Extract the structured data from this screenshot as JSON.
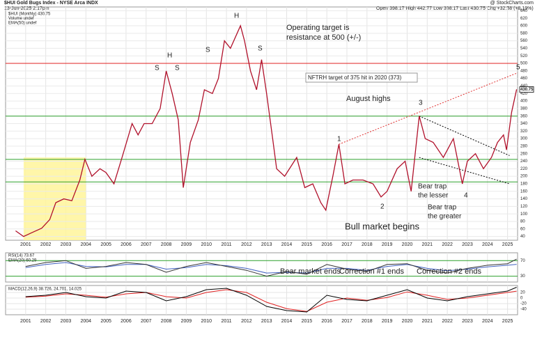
{
  "chart_data": {
    "type": "line",
    "title": "$HUI Gold Bugs Index - NYSE Arca INDX",
    "subtitle": "13-Jun-2025 2:17pm",
    "quote": "Open 398.17  High 442.77  Low 398.17  Last 430.75  Chg +32.58 (+8.19%)",
    "credit": "@ StockCharts.com",
    "legend": [
      "$HUI (Monthly) 430.75",
      "Volume undef",
      "EMA(50) undef"
    ],
    "last_price": 430.75,
    "color": "#b0102a",
    "grid": true,
    "xlim": [
      2000,
      2025.5
    ],
    "xticks": [
      2001,
      2002,
      2003,
      2004,
      2005,
      2006,
      2007,
      2008,
      2009,
      2010,
      2011,
      2012,
      2013,
      2014,
      2015,
      2016,
      2017,
      2018,
      2019,
      2020,
      2021,
      2022,
      2023,
      2024,
      2025
    ],
    "ylim": [
      30,
      650
    ],
    "yticks": [
      40,
      60,
      80,
      100,
      120,
      140,
      160,
      180,
      200,
      220,
      240,
      260,
      280,
      300,
      320,
      340,
      360,
      380,
      400,
      420,
      440,
      460,
      480,
      500,
      520,
      540,
      560,
      580,
      600,
      620,
      640
    ],
    "x": [
      2000.5,
      2000.9,
      2001.3,
      2001.8,
      2002.2,
      2002.5,
      2002.9,
      2003.3,
      2003.7,
      2003.95,
      2004.3,
      2004.7,
      2005.0,
      2005.4,
      2005.8,
      2006.3,
      2006.6,
      2006.9,
      2007.3,
      2007.7,
      2008.0,
      2008.3,
      2008.6,
      2008.85,
      2009.2,
      2009.6,
      2009.9,
      2010.3,
      2010.6,
      2010.9,
      2011.2,
      2011.7,
      2011.9,
      2012.2,
      2012.5,
      2012.75,
      2013.0,
      2013.3,
      2013.5,
      2013.9,
      2014.5,
      2014.9,
      2015.3,
      2015.7,
      2015.95,
      2016.3,
      2016.6,
      2016.9,
      2017.3,
      2017.8,
      2018.3,
      2018.7,
      2019.0,
      2019.5,
      2019.9,
      2020.2,
      2020.6,
      2020.9,
      2021.3,
      2021.8,
      2022.3,
      2022.75,
      2023.0,
      2023.4,
      2023.8,
      2024.2,
      2024.5,
      2024.8,
      2024.95,
      2025.2,
      2025.45
    ],
    "values": [
      55,
      40,
      50,
      62,
      85,
      130,
      140,
      135,
      190,
      245,
      200,
      220,
      210,
      180,
      250,
      340,
      310,
      340,
      340,
      380,
      480,
      420,
      350,
      170,
      290,
      350,
      430,
      420,
      460,
      560,
      540,
      600,
      560,
      480,
      430,
      510,
      420,
      300,
      220,
      200,
      250,
      170,
      180,
      130,
      110,
      200,
      285,
      180,
      190,
      190,
      180,
      145,
      160,
      220,
      240,
      160,
      360,
      300,
      290,
      250,
      300,
      180,
      240,
      260,
      220,
      250,
      290,
      310,
      270,
      370,
      431
    ],
    "levels": [
      {
        "value": 500,
        "color": "#e02020"
      },
      {
        "value": 360,
        "color": "#2ca02c"
      },
      {
        "value": 245,
        "color": "#2ca02c"
      },
      {
        "value": 185,
        "color": "#2ca02c"
      }
    ],
    "shaded_region": {
      "x": [
        2000.9,
        2004.0
      ],
      "y": [
        30,
        250
      ],
      "color": "#fff59a"
    },
    "trendlines": [
      {
        "x": [
          2016.6,
          2025.5
        ],
        "y": [
          285,
          475
        ],
        "color": "#e03030"
      },
      {
        "x": [
          2020.6,
          2025.1
        ],
        "y": [
          360,
          255
        ],
        "color": "#000000"
      },
      {
        "x": [
          2020.6,
          2025.1
        ],
        "y": [
          250,
          180
        ],
        "color": "#000000"
      }
    ],
    "annotations": [
      {
        "lines": [
          "Operating target is",
          "resistance at 500 (+/-)"
        ],
        "color": "#000000"
      },
      {
        "lines": [
          "NFTRH target of 375 hit in 2020 (373)"
        ],
        "color": "#333333"
      },
      {
        "lines": [
          "August highs"
        ],
        "color": "#e02020"
      },
      {
        "lines": [
          "Bear trap",
          "the lesser"
        ],
        "color": "#e02020"
      },
      {
        "lines": [
          "Bear trap",
          "the greater"
        ],
        "color": "#e02020"
      },
      {
        "lines": [
          "Bull market begins"
        ],
        "color": "#000000"
      },
      {
        "lines": [
          "H"
        ],
        "color": "#000000"
      },
      {
        "lines": [
          "H"
        ],
        "color": "#000000"
      },
      {
        "lines": [
          "S"
        ],
        "color": "#000000"
      },
      {
        "lines": [
          "S"
        ],
        "color": "#000000"
      },
      {
        "lines": [
          "S"
        ],
        "color": "#000000"
      },
      {
        "lines": [
          "S"
        ],
        "color": "#000000"
      },
      {
        "lines": [
          "1"
        ],
        "color": "#000000"
      },
      {
        "lines": [
          "2"
        ],
        "color": "#000000"
      },
      {
        "lines": [
          "3"
        ],
        "color": "#000000"
      },
      {
        "lines": [
          "4"
        ],
        "color": "#000000"
      },
      {
        "lines": [
          "5"
        ],
        "color": "#2020c0"
      }
    ],
    "rsi": {
      "label": "RSI(14) 73.67",
      "ema_label": "EMA(20) 60.29",
      "ylim": [
        15,
        90
      ],
      "yticks": [
        30,
        70
      ],
      "x": [
        2001,
        2002,
        2003,
        2004,
        2005,
        2006,
        2007,
        2008,
        2009,
        2010,
        2011,
        2012,
        2013,
        2014,
        2015,
        2016,
        2017,
        2018,
        2019,
        2020,
        2021,
        2022,
        2023,
        2024,
        2025,
        2025.45
      ],
      "values": [
        55,
        65,
        70,
        50,
        55,
        65,
        60,
        40,
        55,
        65,
        55,
        45,
        30,
        42,
        35,
        60,
        48,
        42,
        60,
        62,
        45,
        38,
        50,
        58,
        62,
        73.67
      ],
      "ema": [
        52,
        60,
        65,
        55,
        54,
        60,
        60,
        48,
        52,
        60,
        57,
        50,
        38,
        40,
        38,
        50,
        50,
        45,
        55,
        60,
        50,
        44,
        48,
        54,
        58,
        60.29
      ],
      "color": "#333333",
      "ema_color": "#4060c0",
      "annotations": [
        "Bear market ends",
        "Correction #1 ends",
        "Correction #2 ends"
      ]
    },
    "macd": {
      "label": "MACD(12,26,9) 38.726, 24.701, 14.025",
      "ylim": [
        -60,
        45
      ],
      "yticks": [
        -40,
        -20,
        0,
        20
      ],
      "x": [
        2001,
        2002,
        2003,
        2004,
        2005,
        2006,
        2007,
        2008,
        2009,
        2010,
        2011,
        2012,
        2013,
        2014,
        2015,
        2016,
        2017,
        2018,
        2019,
        2020,
        2021,
        2022,
        2023,
        2024,
        2025,
        2025.45
      ],
      "values": [
        5,
        10,
        20,
        5,
        0,
        25,
        20,
        -10,
        5,
        30,
        35,
        10,
        -30,
        -45,
        -50,
        10,
        -5,
        -10,
        10,
        30,
        0,
        -10,
        5,
        15,
        25,
        38.726
      ],
      "signal": [
        3,
        7,
        15,
        10,
        3,
        15,
        20,
        5,
        0,
        20,
        30,
        20,
        -15,
        -38,
        -48,
        -15,
        0,
        -8,
        2,
        22,
        10,
        -5,
        0,
        10,
        20,
        24.701
      ],
      "color": "#000000",
      "signal_color": "#e02020"
    }
  }
}
